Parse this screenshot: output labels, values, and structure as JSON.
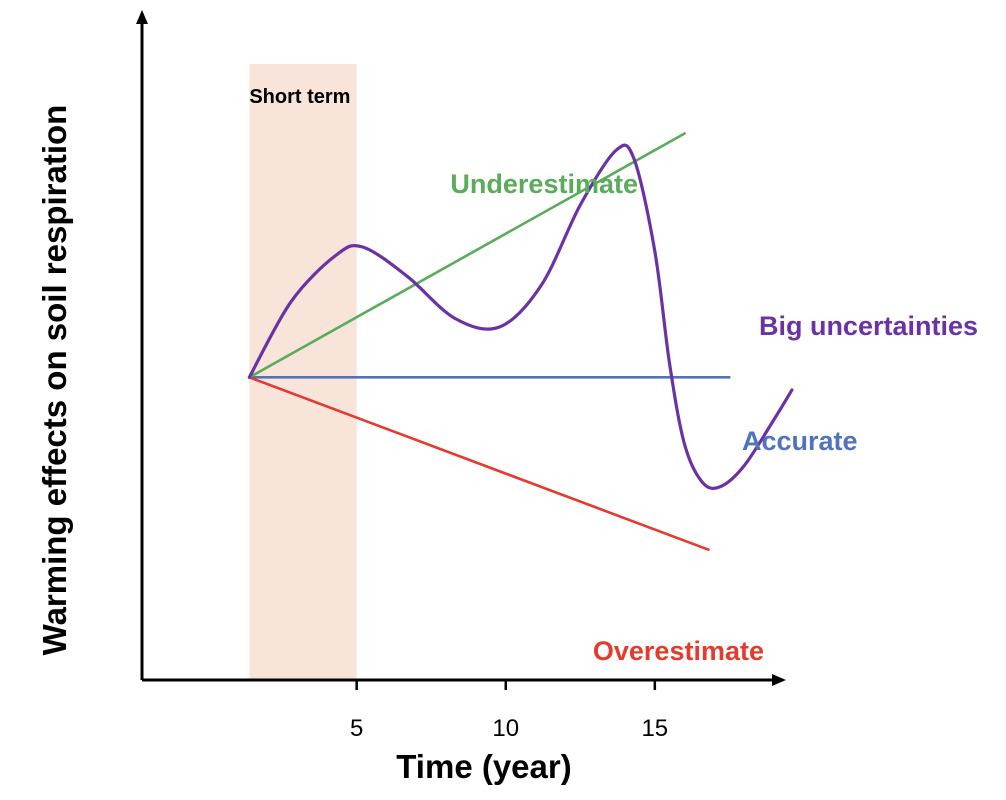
{
  "chart_data": {
    "type": "line",
    "xlabel": "Time (year)",
    "ylabel": "Warming effects on soil respiration",
    "xlim": [
      -2.2,
      19.4
    ],
    "ylim": [
      -7.2,
      8.5
    ],
    "x_ticks": [
      5,
      10,
      15
    ],
    "grid": false,
    "shaded_region": {
      "label": "Short term",
      "x_start": 1.4,
      "x_end": 5,
      "color": "#f8e4d8"
    },
    "series": [
      {
        "name": "Underestimate",
        "color": "#5aab5c",
        "x": [
          1.4,
          16
        ],
        "y": [
          0,
          5.8
        ]
      },
      {
        "name": "Accurate",
        "color": "#4f73bd",
        "x": [
          1.4,
          17.5
        ],
        "y": [
          0,
          0
        ]
      },
      {
        "name": "Overestimate",
        "color": "#e23b2f",
        "x": [
          1.4,
          16.8
        ],
        "y": [
          0,
          -4.1
        ]
      },
      {
        "name": "Big uncertainties",
        "color": "#6a32a2",
        "x": [
          1.4,
          2.8,
          4.3,
          5.2,
          6.7,
          8.3,
          9.8,
          11.2,
          12.5,
          13.7,
          14.3,
          15.0,
          15.5,
          16.0,
          16.6,
          17.2,
          18.0,
          19.0,
          19.6
        ],
        "y": [
          0,
          1.8,
          2.9,
          3.1,
          2.4,
          1.4,
          1.2,
          2.2,
          4.1,
          5.4,
          5.2,
          3.0,
          0.3,
          -1.6,
          -2.5,
          -2.6,
          -2.1,
          -1.0,
          -0.3
        ]
      }
    ]
  }
}
